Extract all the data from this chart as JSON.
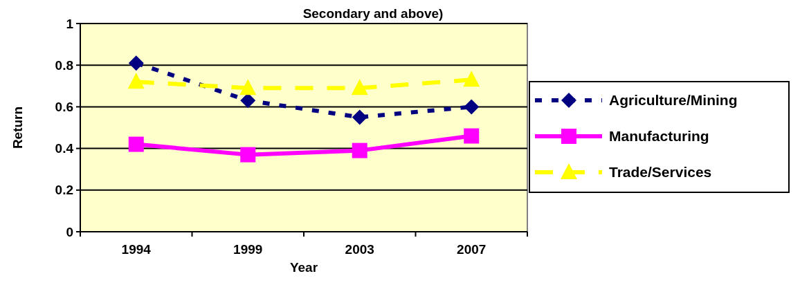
{
  "chart_data": {
    "type": "line",
    "title": "Secondary and above)",
    "xlabel": "Year",
    "ylabel": "Return",
    "categories": [
      "1994",
      "1999",
      "2003",
      "2007"
    ],
    "series": [
      {
        "name": "Agriculture/Mining",
        "color": "#000080",
        "values": [
          0.81,
          0.63,
          0.55,
          0.6
        ],
        "marker": "diamond",
        "line_style": "dotted"
      },
      {
        "name": "Manufacturing",
        "color": "#ff00ff",
        "values": [
          0.42,
          0.37,
          0.39,
          0.46
        ],
        "marker": "square",
        "line_style": "solid"
      },
      {
        "name": "Trade/Services",
        "color": "#ffff00",
        "values": [
          0.72,
          0.69,
          0.69,
          0.73
        ],
        "marker": "triangle",
        "line_style": "dashed"
      }
    ],
    "ylim": [
      0,
      1
    ],
    "yticks": [
      0,
      0.2,
      0.4,
      0.6,
      0.8,
      1
    ],
    "grid": "y",
    "legend": "right"
  }
}
